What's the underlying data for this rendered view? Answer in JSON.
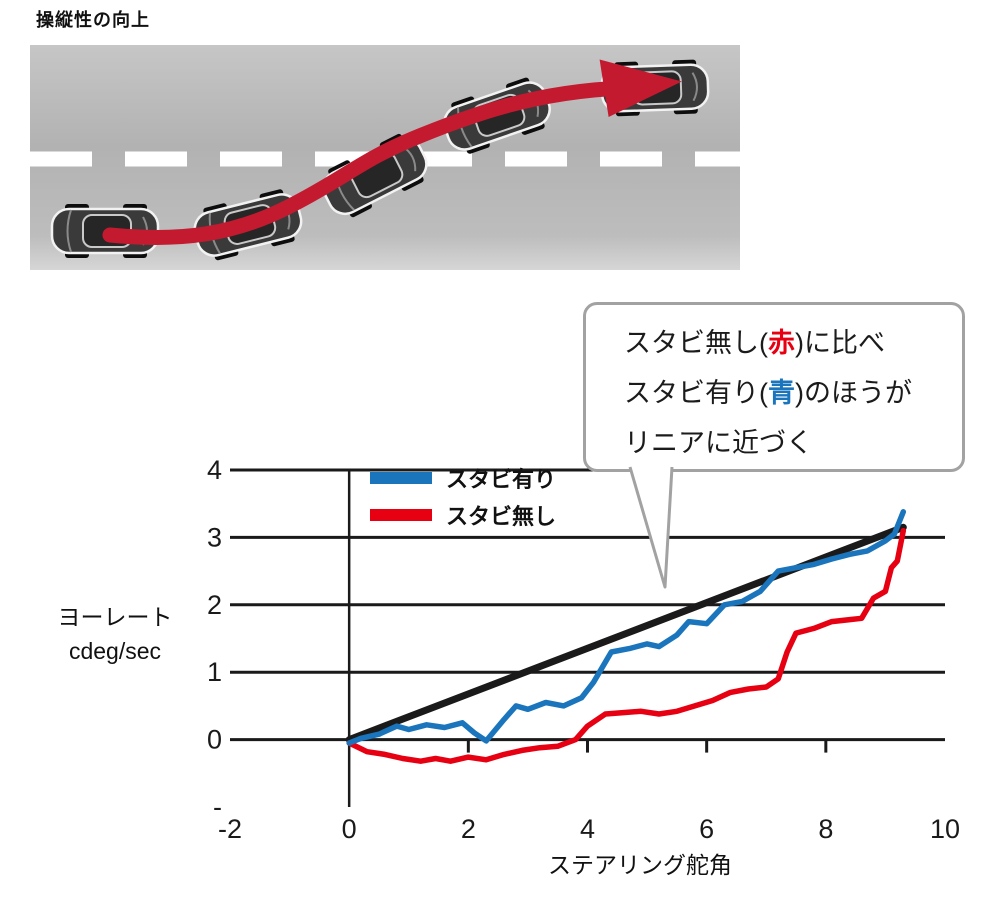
{
  "title": "操縦性の向上",
  "colors": {
    "chart_blue": "#1b75bc",
    "chart_red": "#e60012",
    "reference_black": "#1a1a1a",
    "road_arrow": "#c41a30"
  },
  "callout": {
    "line1": {
      "pre": "スタビ無し(",
      "accent": "赤",
      "accent_color": "#e60012",
      "post": ")に比べ"
    },
    "line2": {
      "pre": "スタビ有り(",
      "accent": "青",
      "accent_color": "#1b75bc",
      "post": ")のほうが"
    },
    "line3": "リニアに近づく"
  },
  "chart_data": {
    "type": "line",
    "title": "",
    "xlabel": "ステアリング舵角",
    "ylabel": "ヨーレート cdeg/sec",
    "ylabel_lines": [
      "ヨーレート",
      "cdeg/sec"
    ],
    "xlim": [
      -2,
      10
    ],
    "ylim": [
      -1,
      4
    ],
    "grid": true,
    "grid_y": [
      0,
      1,
      2,
      3,
      4
    ],
    "x_axis_line_at": 0,
    "tick_marks_x": [
      2,
      4,
      6,
      8
    ],
    "x_ticks": [
      {
        "value": -2,
        "label": "-2"
      },
      {
        "value": 0,
        "label": "0"
      },
      {
        "value": 2,
        "label": "2"
      },
      {
        "value": 4,
        "label": "4"
      },
      {
        "value": 6,
        "label": "6"
      },
      {
        "value": 8,
        "label": "8"
      },
      {
        "value": 10,
        "label": "10"
      }
    ],
    "y_ticks": [
      {
        "value": 4,
        "label": "4"
      },
      {
        "value": 3,
        "label": "3"
      },
      {
        "value": 2,
        "label": "2"
      },
      {
        "value": 1,
        "label": "1"
      },
      {
        "value": 0,
        "label": "0"
      },
      {
        "value": -1,
        "label": "-"
      }
    ],
    "legend": [
      {
        "label": "スタビ有り",
        "color": "#1b75bc"
      },
      {
        "label": "スタビ無し",
        "color": "#e60012"
      }
    ],
    "legend_position": "top-left-inside",
    "series": [
      {
        "key": "linear-reference",
        "color": "#1a1a1a",
        "width": 7,
        "points": [
          [
            0,
            0
          ],
          [
            9.3,
            3.15
          ]
        ]
      },
      {
        "key": "without-stabilizer",
        "label": "スタビ無し",
        "color": "#e60012",
        "width": 5.5,
        "points": [
          [
            0,
            -0.05
          ],
          [
            0.3,
            -0.18
          ],
          [
            0.6,
            -0.22
          ],
          [
            0.9,
            -0.28
          ],
          [
            1.2,
            -0.32
          ],
          [
            1.45,
            -0.28
          ],
          [
            1.7,
            -0.32
          ],
          [
            2.0,
            -0.26
          ],
          [
            2.3,
            -0.3
          ],
          [
            2.6,
            -0.22
          ],
          [
            2.9,
            -0.16
          ],
          [
            3.2,
            -0.12
          ],
          [
            3.5,
            -0.1
          ],
          [
            3.8,
            0.0
          ],
          [
            4.0,
            0.2
          ],
          [
            4.3,
            0.38
          ],
          [
            4.6,
            0.4
          ],
          [
            4.9,
            0.42
          ],
          [
            5.2,
            0.38
          ],
          [
            5.5,
            0.42
          ],
          [
            5.8,
            0.5
          ],
          [
            6.1,
            0.58
          ],
          [
            6.4,
            0.7
          ],
          [
            6.7,
            0.75
          ],
          [
            7.0,
            0.78
          ],
          [
            7.2,
            0.9
          ],
          [
            7.35,
            1.3
          ],
          [
            7.5,
            1.58
          ],
          [
            7.8,
            1.65
          ],
          [
            8.1,
            1.75
          ],
          [
            8.4,
            1.78
          ],
          [
            8.6,
            1.8
          ],
          [
            8.8,
            2.1
          ],
          [
            9.0,
            2.2
          ],
          [
            9.1,
            2.55
          ],
          [
            9.2,
            2.65
          ],
          [
            9.3,
            3.1
          ]
        ]
      },
      {
        "key": "with-stabilizer",
        "label": "スタビ有り",
        "color": "#1b75bc",
        "width": 5.5,
        "points": [
          [
            0,
            -0.05
          ],
          [
            0.2,
            0.02
          ],
          [
            0.5,
            0.08
          ],
          [
            0.8,
            0.2
          ],
          [
            1.0,
            0.15
          ],
          [
            1.3,
            0.22
          ],
          [
            1.6,
            0.18
          ],
          [
            1.9,
            0.25
          ],
          [
            2.1,
            0.1
          ],
          [
            2.3,
            -0.02
          ],
          [
            2.6,
            0.3
          ],
          [
            2.8,
            0.5
          ],
          [
            3.0,
            0.45
          ],
          [
            3.3,
            0.55
          ],
          [
            3.6,
            0.5
          ],
          [
            3.9,
            0.62
          ],
          [
            4.1,
            0.85
          ],
          [
            4.4,
            1.3
          ],
          [
            4.7,
            1.35
          ],
          [
            5.0,
            1.42
          ],
          [
            5.2,
            1.38
          ],
          [
            5.5,
            1.55
          ],
          [
            5.7,
            1.75
          ],
          [
            6.0,
            1.72
          ],
          [
            6.3,
            2.0
          ],
          [
            6.6,
            2.05
          ],
          [
            6.9,
            2.2
          ],
          [
            7.2,
            2.5
          ],
          [
            7.5,
            2.55
          ],
          [
            7.8,
            2.6
          ],
          [
            8.1,
            2.68
          ],
          [
            8.4,
            2.75
          ],
          [
            8.7,
            2.8
          ],
          [
            9.0,
            2.95
          ],
          [
            9.15,
            3.05
          ],
          [
            9.3,
            3.38
          ]
        ]
      }
    ]
  }
}
